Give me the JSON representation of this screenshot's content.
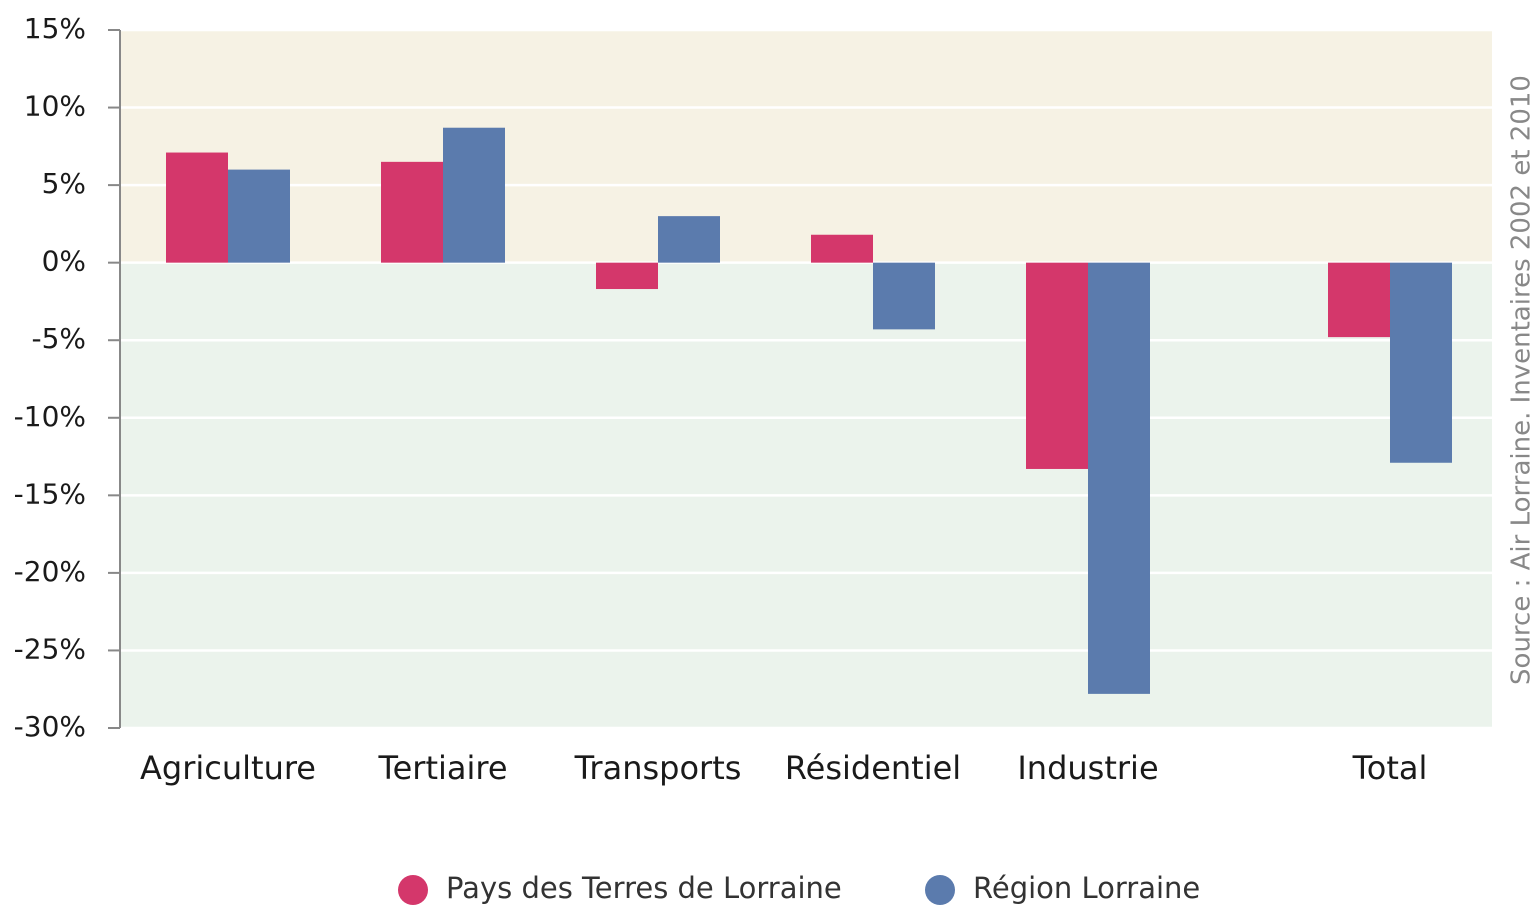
{
  "chart_data": {
    "type": "bar",
    "categories": [
      "Agriculture",
      "Tertiaire",
      "Transports",
      "Résidentiel",
      "Industrie",
      "Total"
    ],
    "series": [
      {
        "name": "Pays des Terres de Lorraine",
        "color": "#d4376b",
        "values": [
          7.1,
          6.5,
          -1.7,
          1.8,
          -13.3,
          -4.8
        ]
      },
      {
        "name": "Région Lorraine",
        "color": "#5b7bad",
        "values": [
          6.0,
          8.7,
          3.0,
          -4.3,
          -27.8,
          -12.9
        ]
      }
    ],
    "ylim": [
      -30,
      15
    ],
    "yticks": [
      {
        "value": -30,
        "label": "-30%"
      },
      {
        "value": -25,
        "label": "-25%"
      },
      {
        "value": -20,
        "label": "-20%"
      },
      {
        "value": -15,
        "label": "-15%"
      },
      {
        "value": -10,
        "label": "-10%"
      },
      {
        "value": -5,
        "label": "-5%"
      },
      {
        "value": 0,
        "label": "0%"
      },
      {
        "value": 5,
        "label": "5%"
      },
      {
        "value": 10,
        "label": "10%"
      },
      {
        "value": 15,
        "label": "15%"
      }
    ],
    "grid": true,
    "legend": "bottom",
    "source": "Source : Air Lorraine. Inventaires 2002 et 2010"
  }
}
